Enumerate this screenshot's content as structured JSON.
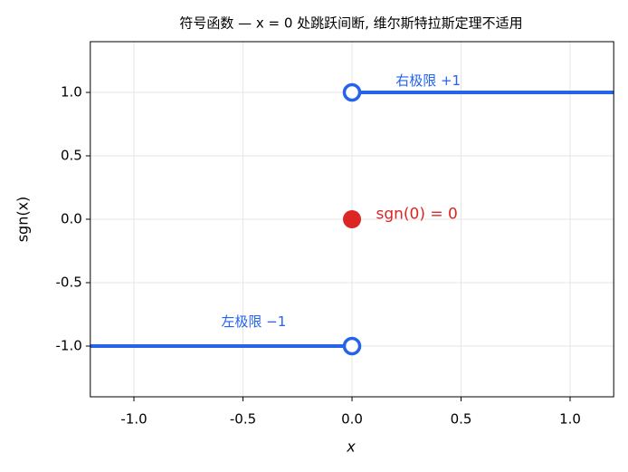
{
  "chart_data": {
    "type": "line",
    "title": "符号函数 — x = 0 处跳跃间断, 维尔斯特拉斯定理不适用",
    "xlabel": "x",
    "ylabel": "sgn(x)",
    "xlim": [
      -1.2,
      1.2
    ],
    "ylim": [
      -1.4,
      1.4
    ],
    "xticks": [
      {
        "value": -1,
        "label": "-1.0"
      },
      {
        "value": -0.5,
        "label": "-0.5"
      },
      {
        "value": 0,
        "label": "0.0"
      },
      {
        "value": 0.5,
        "label": "0.5"
      },
      {
        "value": 1,
        "label": "1.0"
      }
    ],
    "yticks": [
      {
        "value": -1,
        "label": "-1.0"
      },
      {
        "value": -0.5,
        "label": "-0.5"
      },
      {
        "value": 0,
        "label": "0.0"
      },
      {
        "value": 0.5,
        "label": "0.5"
      },
      {
        "value": 1,
        "label": "1.0"
      }
    ],
    "grid": true,
    "series": [
      {
        "color": "#2563eb",
        "x": [
          -1.2,
          0
        ],
        "values": [
          -1,
          -1
        ]
      },
      {
        "color": "#2563eb",
        "x": [
          0,
          1.2
        ],
        "values": [
          1,
          1
        ]
      }
    ],
    "points": [
      {
        "x": 0,
        "y": 1,
        "color": "#2563eb",
        "filled": false
      },
      {
        "x": 0,
        "y": -1,
        "color": "#2563eb",
        "filled": false
      },
      {
        "x": 0,
        "y": 0,
        "color": "#dc2626",
        "filled": true
      }
    ],
    "annotations": [
      {
        "text": "右极限 +1",
        "x": 0.2,
        "y": 1.09,
        "color": "#2563eb"
      },
      {
        "text": "左极限 −1",
        "x": -0.6,
        "y": -0.81,
        "color": "#2563eb"
      },
      {
        "text": "sgn(0) = 0",
        "x": 0.11,
        "y": 0.04,
        "color": "#dc2626"
      }
    ]
  }
}
